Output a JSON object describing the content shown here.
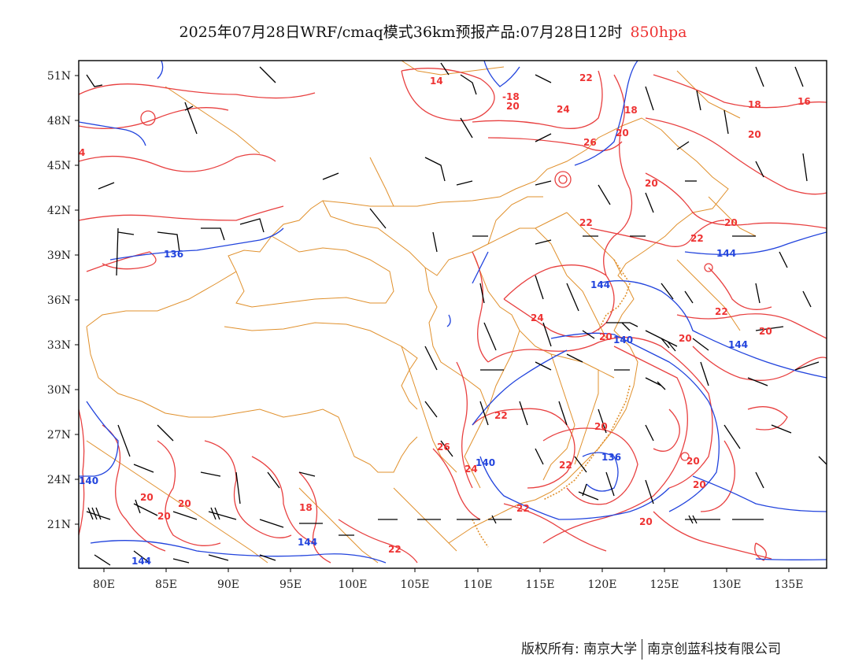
{
  "title": {
    "main": "2025年07月28日WRF/cmaq模式36km预报产品:07月28日12时",
    "level": "850hpa",
    "level_color": "#ee3333"
  },
  "axes": {
    "lat_labels": [
      "51N",
      "48N",
      "45N",
      "42N",
      "39N",
      "36N",
      "33N",
      "30N",
      "27N",
      "24N",
      "21N"
    ],
    "lon_labels": [
      "80E",
      "85E",
      "90E",
      "95E",
      "100E",
      "105E",
      "110E",
      "115E",
      "120E",
      "125E",
      "130E",
      "135E"
    ]
  },
  "colors": {
    "temperature_contour": "#e84040",
    "height_contour": "#2244dd",
    "boundary": "#e0902c",
    "wind_barb": "#000000",
    "frame": "#000000"
  },
  "contour_labels": {
    "temperature": [
      "14",
      "-18",
      "20",
      "24",
      "22",
      "18",
      "18",
      "16",
      "20",
      "26",
      "20",
      "20",
      "20",
      "22",
      "22",
      "24",
      "20",
      "20",
      "22",
      "20",
      "22",
      "26",
      "24",
      "22",
      "22",
      "20",
      "20",
      "20",
      "20",
      "18",
      "22",
      "20",
      "20",
      "20",
      "4"
    ],
    "height": [
      "136",
      "144",
      "144",
      "140",
      "144",
      "140",
      "136",
      "140",
      "144",
      "144",
      "140"
    ]
  },
  "footer": {
    "copyright": "版权所有: 南京大学",
    "company": "南京创蓝科技有限公司"
  }
}
